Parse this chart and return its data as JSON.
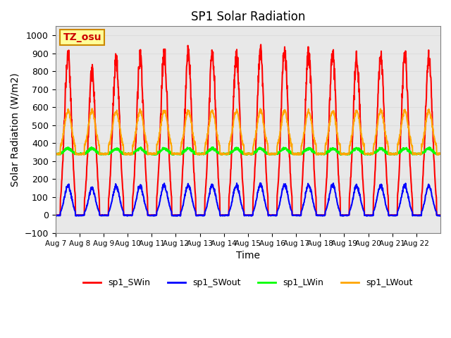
{
  "title": "SP1 Solar Radiation",
  "xlabel": "Time",
  "ylabel": "Solar Radiation (W/m2)",
  "ylim": [
    -100,
    1050
  ],
  "x_tick_labels": [
    "Aug 7",
    "Aug 8",
    "Aug 9",
    "Aug 10",
    "Aug 11",
    "Aug 12",
    "Aug 13",
    "Aug 14",
    "Aug 15",
    "Aug 16",
    "Aug 17",
    "Aug 18",
    "Aug 19",
    "Aug 20",
    "Aug 21",
    "Aug 22"
  ],
  "legend_labels": [
    "sp1_SWin",
    "sp1_SWout",
    "sp1_LWin",
    "sp1_LWout"
  ],
  "legend_colors": [
    "red",
    "blue",
    "lime",
    "orange"
  ],
  "annotation_text": "TZ_osu",
  "annotation_color": "#cc0000",
  "annotation_bg": "#ffff99",
  "annotation_border": "#cc8800",
  "grid_color": "#dddddd",
  "bg_color": "#e8e8e8",
  "n_days": 16,
  "LWin_base": 340,
  "LWout_base": 360,
  "line_width": 1.5,
  "day_swpeak": [
    950,
    840,
    920,
    925,
    950,
    950,
    950,
    950,
    960,
    970,
    960,
    950,
    935,
    940,
    940,
    935
  ]
}
